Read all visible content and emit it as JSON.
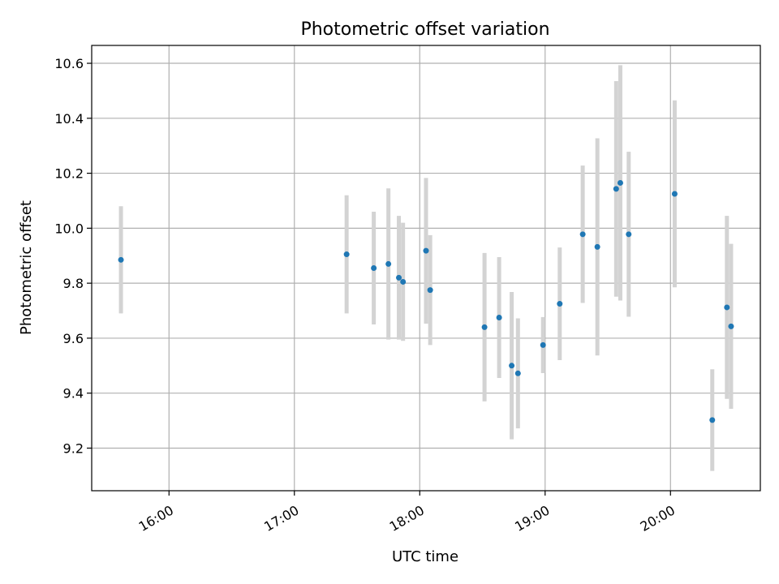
{
  "chart_data": {
    "type": "scatter",
    "title": "Photometric offset variation",
    "xlabel": "UTC time",
    "ylabel": "Photometric offset",
    "x_ticks": [
      "16:00",
      "17:00",
      "18:00",
      "19:00",
      "20:00"
    ],
    "y_ticks": [
      "9.2",
      "9.4",
      "9.6",
      "9.8",
      "10.0",
      "10.2",
      "10.4",
      "10.6"
    ],
    "xlim": [
      "15:23",
      "20:43"
    ],
    "ylim": [
      9.045,
      10.665
    ],
    "grid": true,
    "colors": {
      "point": "#1f77b4",
      "errorbar": "#d3d3d3",
      "grid": "#b0b0b0"
    },
    "series": [
      {
        "points": [
          {
            "x": "15:37",
            "y": 9.885,
            "err": 0.195
          },
          {
            "x": "17:25",
            "y": 9.905,
            "err": 0.215
          },
          {
            "x": "17:38",
            "y": 9.855,
            "err": 0.205
          },
          {
            "x": "17:45",
            "y": 9.87,
            "err": 0.275
          },
          {
            "x": "17:50",
            "y": 9.82,
            "err": 0.225
          },
          {
            "x": "17:52",
            "y": 9.805,
            "err": 0.215
          },
          {
            "x": "18:03",
            "y": 9.918,
            "err": 0.265
          },
          {
            "x": "18:05",
            "y": 9.775,
            "err": 0.2
          },
          {
            "x": "18:31",
            "y": 9.64,
            "err": 0.27
          },
          {
            "x": "18:38",
            "y": 9.675,
            "err": 0.22
          },
          {
            "x": "18:44",
            "y": 9.5,
            "err": 0.268
          },
          {
            "x": "18:47",
            "y": 9.472,
            "err": 0.2
          },
          {
            "x": "18:59",
            "y": 9.575,
            "err": 0.102
          },
          {
            "x": "19:07",
            "y": 9.725,
            "err": 0.205
          },
          {
            "x": "19:18",
            "y": 9.978,
            "err": 0.25
          },
          {
            "x": "19:25",
            "y": 9.932,
            "err": 0.395
          },
          {
            "x": "19:34",
            "y": 10.143,
            "err": 0.392
          },
          {
            "x": "19:36",
            "y": 10.165,
            "err": 0.428
          },
          {
            "x": "19:40",
            "y": 9.978,
            "err": 0.3
          },
          {
            "x": "20:02",
            "y": 10.125,
            "err": 0.34
          },
          {
            "x": "20:20",
            "y": 9.302,
            "err": 0.185
          },
          {
            "x": "20:27",
            "y": 9.712,
            "err": 0.333
          },
          {
            "x": "20:29",
            "y": 9.643,
            "err": 0.3
          }
        ]
      }
    ]
  }
}
